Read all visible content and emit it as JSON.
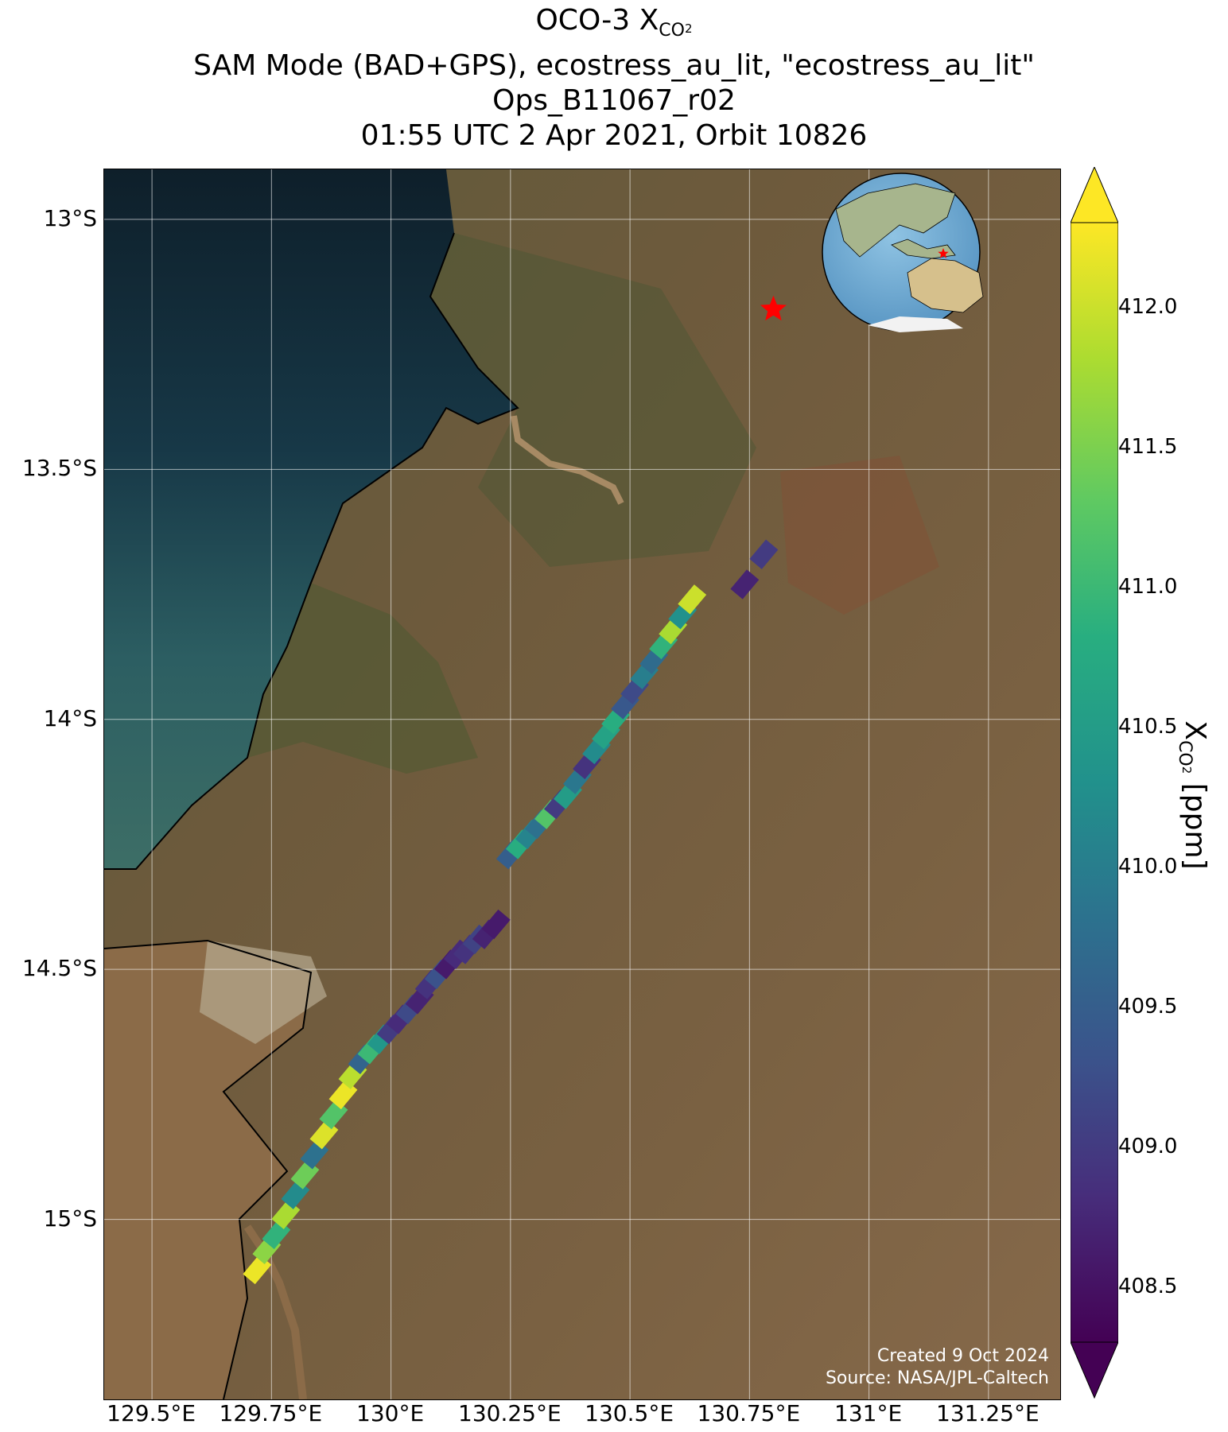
{
  "title": {
    "line1_prefix": "OCO-3 X",
    "line1_sub": "CO",
    "line1_sub2": "2",
    "line2": "SAM Mode (BAD+GPS), ecostress_au_lit, \"ecostress_au_lit\"",
    "line3": "Ops_B11067_r02",
    "line4": "01:55 UTC 2 Apr 2021, Orbit 10826"
  },
  "axes": {
    "lat_labels": [
      "13°S",
      "13.5°S",
      "14°S",
      "14.5°S",
      "15°S"
    ],
    "lon_labels": [
      "129.5°E",
      "129.75°E",
      "130°E",
      "130.25°E",
      "130.5°E",
      "130.75°E",
      "131°E",
      "131.25°E"
    ],
    "lat_values": [
      -13.0,
      -13.5,
      -14.0,
      -14.5,
      -15.0
    ],
    "lon_values": [
      129.5,
      129.75,
      130.0,
      130.25,
      130.5,
      130.75,
      131.0,
      131.25
    ],
    "lat_range": [
      -15.36,
      -12.9
    ],
    "lon_range": [
      129.4,
      131.4
    ]
  },
  "target": {
    "name": "ecostress_au_lit",
    "lat": -13.18,
    "lon": 130.8,
    "marker": "red-star"
  },
  "colorbar": {
    "label_prefix": "X",
    "label_sub": "CO",
    "label_sub2": "2",
    "label_suffix": " [ppm]",
    "range": [
      408.3,
      412.3
    ],
    "ticks": [
      "408.5",
      "409.0",
      "409.5",
      "410.0",
      "410.5",
      "411.0",
      "411.5",
      "412.0"
    ],
    "tick_values": [
      408.5,
      409.0,
      409.5,
      410.0,
      410.5,
      411.0,
      411.5,
      412.0
    ],
    "colormap": "viridis",
    "extend": "both"
  },
  "credit": {
    "line1": "Created 9 Oct 2024",
    "line2": "Source: NASA/JPL-Caltech"
  },
  "inset": {
    "type": "globe",
    "description_icon": "globe-icon"
  },
  "chart_data": {
    "type": "scatter",
    "series": [
      {
        "lon": [
          129.72,
          129.74,
          129.76,
          129.78,
          129.8,
          129.82,
          129.84,
          129.86,
          129.88,
          129.9,
          129.92,
          129.94,
          129.96,
          129.98,
          130.0,
          130.02,
          130.04,
          130.06,
          130.08,
          130.1,
          130.12,
          130.14,
          130.16,
          130.18,
          130.2,
          130.22,
          130.25,
          130.27,
          130.29,
          130.31,
          130.33,
          130.35,
          130.37,
          130.39,
          130.41,
          130.43,
          130.45,
          130.47,
          130.49,
          130.51,
          130.53,
          130.55,
          130.57,
          130.59,
          130.61,
          130.63,
          130.74,
          130.78
        ],
        "lat": [
          -15.1,
          -15.06,
          -15.03,
          -14.99,
          -14.95,
          -14.91,
          -14.87,
          -14.83,
          -14.79,
          -14.75,
          -14.71,
          -14.68,
          -14.66,
          -14.64,
          -14.62,
          -14.6,
          -14.58,
          -14.56,
          -14.53,
          -14.51,
          -14.49,
          -14.47,
          -14.46,
          -14.44,
          -14.43,
          -14.41,
          -14.27,
          -14.25,
          -14.23,
          -14.21,
          -14.19,
          -14.17,
          -14.15,
          -14.12,
          -14.09,
          -14.06,
          -14.03,
          -14.0,
          -13.97,
          -13.94,
          -13.91,
          -13.88,
          -13.85,
          -13.82,
          -13.79,
          -13.76,
          -13.73,
          -13.67
        ],
        "xco2": [
          412.2,
          411.6,
          410.9,
          411.8,
          410.2,
          411.4,
          409.8,
          412.1,
          411.2,
          412.2,
          411.9,
          409.6,
          411.0,
          410.4,
          409.0,
          408.8,
          409.2,
          408.7,
          408.9,
          409.3,
          408.6,
          408.8,
          408.9,
          409.1,
          408.7,
          408.6,
          409.5,
          410.8,
          410.1,
          409.8,
          411.2,
          409.0,
          410.5,
          409.9,
          408.9,
          410.2,
          410.6,
          410.8,
          409.4,
          409.2,
          410.0,
          409.7,
          410.9,
          411.8,
          410.3,
          412.0,
          408.7,
          409.0
        ]
      }
    ]
  }
}
